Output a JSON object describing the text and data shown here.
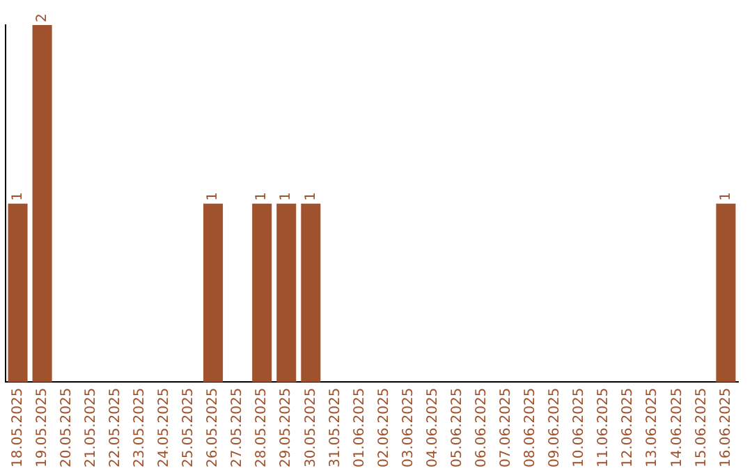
{
  "chart_data": {
    "type": "bar",
    "categories": [
      "18.05.2025",
      "19.05.2025",
      "20.05.2025",
      "21.05.2025",
      "22.05.2025",
      "23.05.2025",
      "24.05.2025",
      "25.05.2025",
      "26.05.2025",
      "27.05.2025",
      "28.05.2025",
      "29.05.2025",
      "30.05.2025",
      "31.05.2025",
      "01.06.2025",
      "02.06.2025",
      "03.06.2025",
      "04.06.2025",
      "05.06.2025",
      "06.06.2025",
      "07.06.2025",
      "08.06.2025",
      "09.06.2025",
      "10.06.2025",
      "11.06.2025",
      "12.06.2025",
      "13.06.2025",
      "14.06.2025",
      "15.06.2025",
      "16.06.2025"
    ],
    "values": [
      1,
      2,
      0,
      0,
      0,
      0,
      0,
      0,
      1,
      0,
      1,
      1,
      1,
      0,
      0,
      0,
      0,
      0,
      0,
      0,
      0,
      0,
      0,
      0,
      0,
      0,
      0,
      0,
      0,
      1
    ],
    "value_labels": [
      "1",
      "2",
      null,
      null,
      null,
      null,
      null,
      null,
      "1",
      null,
      "1",
      "1",
      "1",
      null,
      null,
      null,
      null,
      null,
      null,
      null,
      null,
      null,
      null,
      null,
      null,
      null,
      null,
      null,
      null,
      "1"
    ],
    "color": "#a0522d",
    "ylim": [
      0,
      2
    ],
    "tick_labels": "x",
    "grid": false,
    "legend": false
  }
}
